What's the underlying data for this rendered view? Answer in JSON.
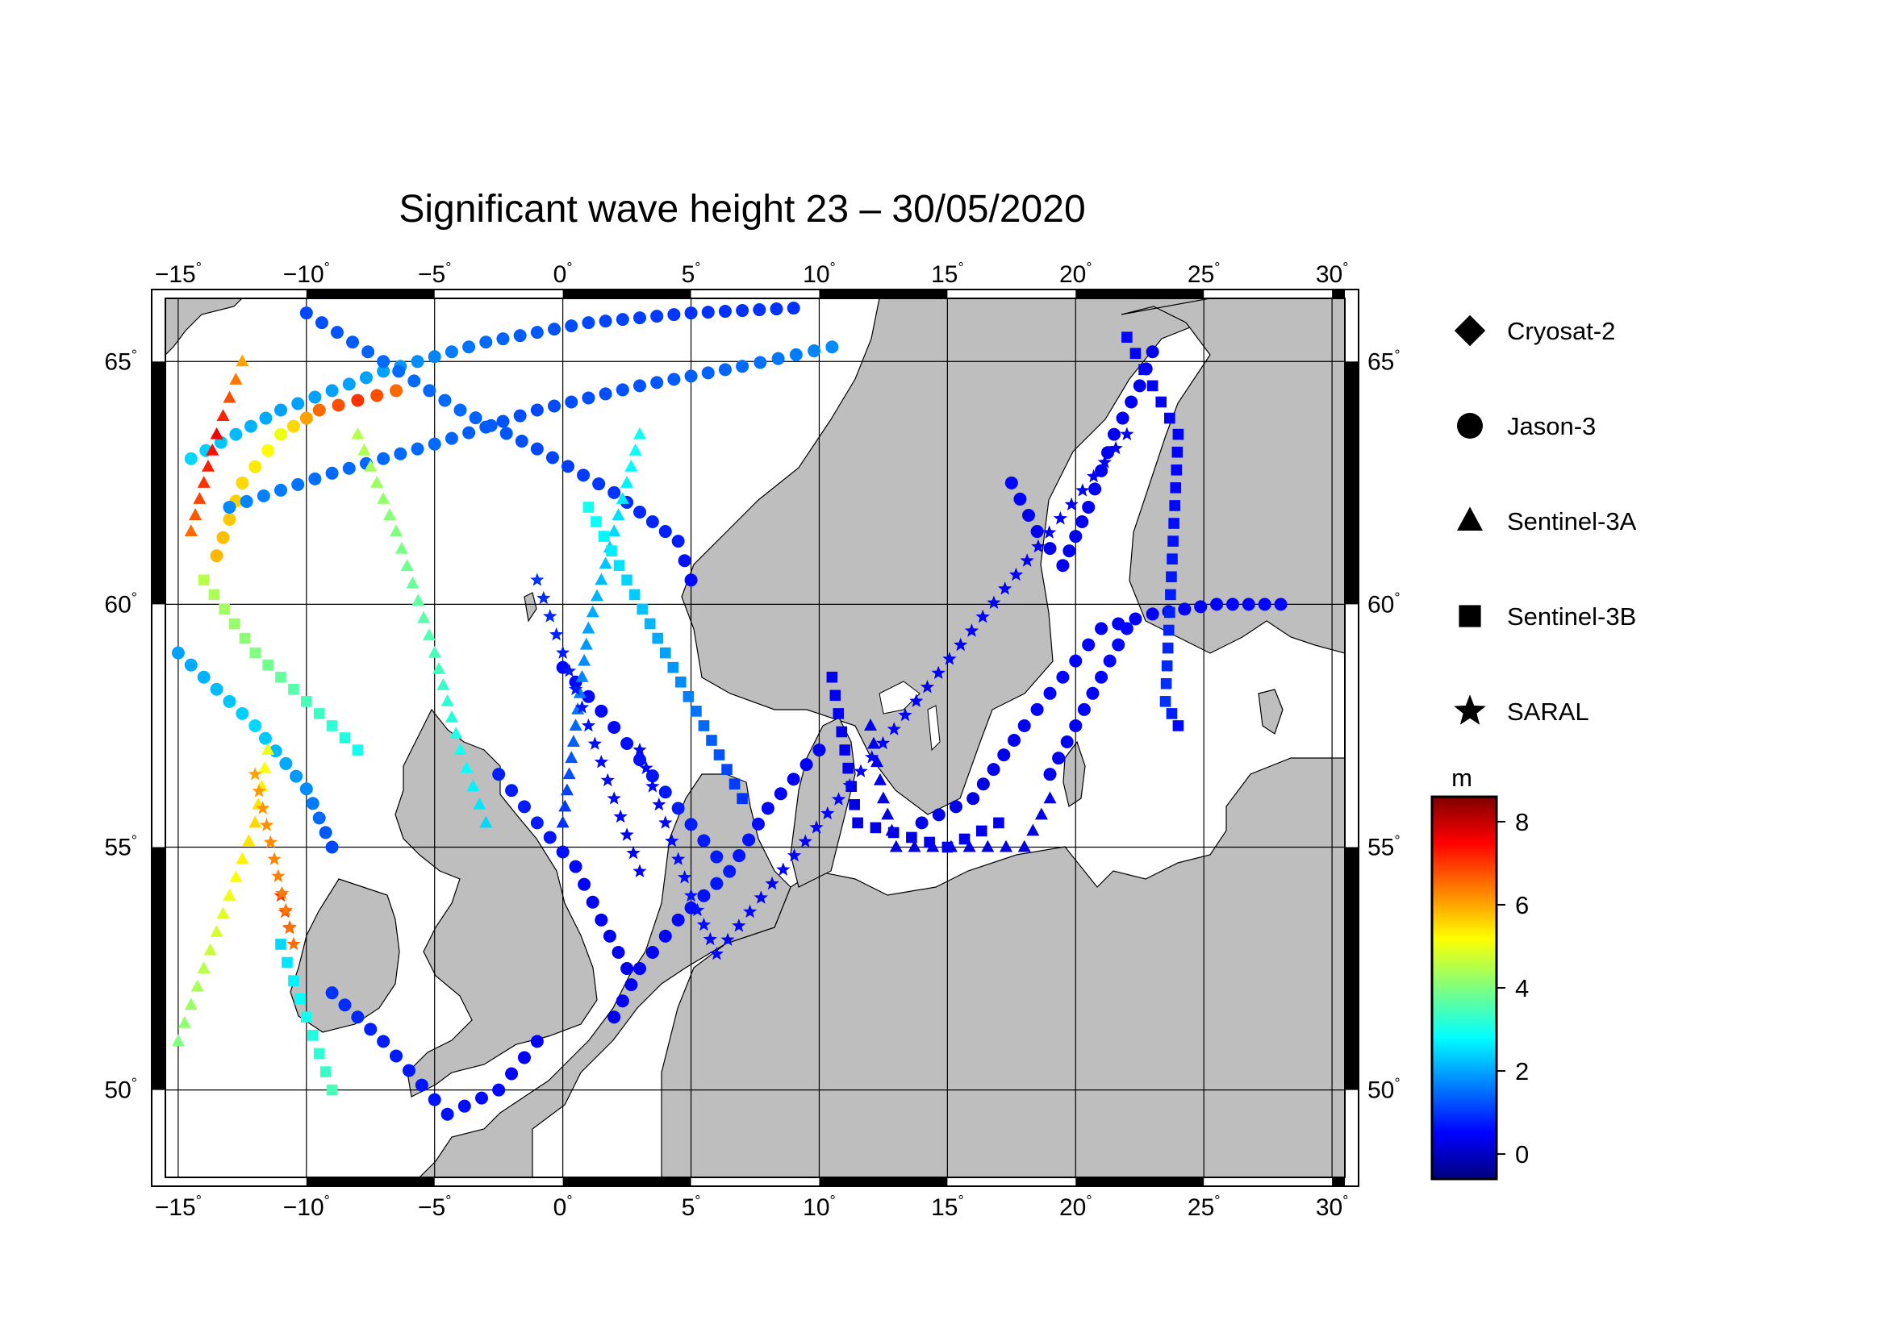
{
  "title": "Significant wave height 23 – 30/05/2020",
  "chart_data": {
    "type": "scatter",
    "title": "Significant wave height 23 – 30/05/2020",
    "lon_range": [
      -15.5,
      30.5
    ],
    "lat_range": [
      48.2,
      66.3
    ],
    "lon_ticks": [
      "−15",
      "−10",
      "−5",
      "0",
      "5",
      "10",
      "15",
      "20",
      "25",
      "30"
    ],
    "lat_ticks": [
      "50",
      "55",
      "60",
      "65"
    ],
    "lon_tick_values": [
      -15,
      -10,
      -5,
      0,
      5,
      10,
      15,
      20,
      25,
      30
    ],
    "lat_tick_values": [
      50,
      55,
      60,
      65
    ],
    "degree_symbol": "°",
    "grid": true,
    "land_color": "#bebebe",
    "sea_color": "#ffffff",
    "legend_position": "right",
    "legend": [
      {
        "name": "Cryosat-2",
        "marker": "diamond"
      },
      {
        "name": "Jason-3",
        "marker": "circle"
      },
      {
        "name": "Sentinel-3A",
        "marker": "triangle"
      },
      {
        "name": "Sentinel-3B",
        "marker": "square"
      },
      {
        "name": "SARAL",
        "marker": "star"
      }
    ],
    "colorbar": {
      "unit": "m",
      "range": [
        -0.6,
        8.6
      ],
      "ticks": [
        "0",
        "2",
        "4",
        "6",
        "8"
      ],
      "tick_values": [
        0,
        2,
        4,
        6,
        8
      ],
      "colormap": "jet"
    },
    "tracks": [
      {
        "satellite": "Jason-3",
        "marker": "circle",
        "points": [
          [
            -13.5,
            61.0,
            5.8
          ],
          [
            -12.5,
            62.5,
            5.5
          ],
          [
            -11.0,
            63.5,
            5.0
          ],
          [
            -9.5,
            64.0,
            6.5
          ],
          [
            -8.0,
            64.2,
            7.0
          ],
          [
            -6.5,
            64.4,
            6.5
          ]
        ]
      },
      {
        "satellite": "Jason-3",
        "marker": "circle",
        "points": [
          [
            -14.5,
            63.0,
            2.5
          ],
          [
            -11.0,
            64.0,
            2.0
          ],
          [
            -7.0,
            64.8,
            2.0
          ],
          [
            -3.0,
            65.4,
            1.5
          ],
          [
            1.0,
            65.8,
            1.2
          ],
          [
            5.0,
            66.0,
            1.0
          ],
          [
            9.0,
            66.1,
            1.0
          ]
        ]
      },
      {
        "satellite": "Jason-3",
        "marker": "circle",
        "points": [
          [
            -13.0,
            62.0,
            1.8
          ],
          [
            -9.0,
            62.7,
            1.5
          ],
          [
            -5.0,
            63.3,
            1.5
          ],
          [
            -1.0,
            64.0,
            1.2
          ],
          [
            3.0,
            64.5,
            1.3
          ],
          [
            7.0,
            64.9,
            1.5
          ],
          [
            10.5,
            65.3,
            1.8
          ]
        ]
      },
      {
        "satellite": "Jason-3",
        "marker": "circle",
        "points": [
          [
            -10.0,
            66.0,
            1.2
          ],
          [
            -7.0,
            65.0,
            1.5
          ],
          [
            -4.0,
            64.0,
            1.5
          ],
          [
            -1.0,
            63.2,
            1.2
          ],
          [
            2.0,
            62.3,
            1.0
          ],
          [
            4.5,
            61.3,
            0.8
          ],
          [
            5.0,
            60.5,
            0.6
          ]
        ]
      },
      {
        "satellite": "Jason-3",
        "marker": "circle",
        "points": [
          [
            -15.0,
            59.0,
            2.0
          ],
          [
            -12.0,
            57.5,
            2.5
          ],
          [
            -10.0,
            56.2,
            1.8
          ],
          [
            -9.0,
            55.0,
            1.2
          ]
        ]
      },
      {
        "satellite": "Jason-3",
        "marker": "circle",
        "points": [
          [
            -2.5,
            56.5,
            0.8
          ],
          [
            -1.0,
            55.5,
            0.8
          ],
          [
            0.5,
            54.6,
            0.6
          ],
          [
            1.5,
            53.5,
            0.5
          ],
          [
            2.5,
            52.5,
            0.4
          ]
        ]
      },
      {
        "satellite": "Jason-3",
        "marker": "circle",
        "points": [
          [
            0.0,
            58.7,
            0.6
          ],
          [
            1.5,
            57.8,
            0.6
          ],
          [
            3.0,
            56.8,
            0.7
          ],
          [
            4.5,
            55.8,
            0.8
          ],
          [
            6.0,
            54.8,
            0.8
          ]
        ]
      },
      {
        "satellite": "Jason-3",
        "marker": "circle",
        "points": [
          [
            -1.0,
            51.0,
            0.5
          ],
          [
            -2.5,
            50.0,
            0.6
          ],
          [
            -4.5,
            49.5,
            0.7
          ],
          [
            -7.0,
            51.0,
            0.8
          ],
          [
            -9.0,
            52.0,
            1.0
          ]
        ]
      },
      {
        "satellite": "Jason-3",
        "marker": "circle",
        "points": [
          [
            2.0,
            51.5,
            0.4
          ],
          [
            3.0,
            52.5,
            0.5
          ],
          [
            4.5,
            53.5,
            0.6
          ],
          [
            6.5,
            54.5,
            0.8
          ],
          [
            8.0,
            55.8,
            0.6
          ],
          [
            10.0,
            57.0,
            0.4
          ]
        ]
      },
      {
        "satellite": "Jason-3",
        "marker": "circle",
        "points": [
          [
            14.0,
            55.5,
            0.4
          ],
          [
            16.0,
            56.0,
            0.3
          ],
          [
            18.0,
            57.5,
            0.5
          ],
          [
            19.5,
            58.5,
            0.6
          ],
          [
            21.0,
            59.5,
            0.5
          ],
          [
            23.0,
            59.8,
            0.5
          ],
          [
            25.5,
            60.0,
            0.5
          ],
          [
            28.0,
            60.0,
            0.6
          ]
        ]
      },
      {
        "satellite": "Jason-3",
        "marker": "circle",
        "points": [
          [
            17.5,
            62.5,
            0.6
          ],
          [
            18.5,
            61.5,
            0.4
          ],
          [
            19.5,
            60.8,
            0.4
          ],
          [
            20.5,
            62.0,
            0.5
          ],
          [
            21.5,
            63.5,
            0.5
          ],
          [
            22.5,
            64.5,
            0.5
          ],
          [
            23.0,
            65.2,
            0.4
          ]
        ]
      },
      {
        "satellite": "Jason-3",
        "marker": "circle",
        "points": [
          [
            19.0,
            56.5,
            0.4
          ],
          [
            20.0,
            57.5,
            0.5
          ],
          [
            21.0,
            58.5,
            0.6
          ],
          [
            22.0,
            59.5,
            0.6
          ]
        ]
      },
      {
        "satellite": "Sentinel-3A",
        "marker": "triangle",
        "points": [
          [
            -15.0,
            51.0,
            4.0
          ],
          [
            -14.0,
            52.5,
            4.5
          ],
          [
            -13.0,
            54.0,
            5.0
          ],
          [
            -12.0,
            55.5,
            5.5
          ],
          [
            -11.5,
            57.0,
            5.0
          ]
        ]
      },
      {
        "satellite": "Sentinel-3A",
        "marker": "triangle",
        "points": [
          [
            -12.5,
            65.0,
            6.0
          ],
          [
            -13.5,
            63.5,
            7.5
          ],
          [
            -14.5,
            61.5,
            6.5
          ]
        ]
      },
      {
        "satellite": "Sentinel-3A",
        "marker": "triangle",
        "points": [
          [
            -8.0,
            63.5,
            4.5
          ],
          [
            -6.5,
            61.5,
            4.0
          ],
          [
            -5.0,
            59.0,
            3.5
          ],
          [
            -4.0,
            57.0,
            3.0
          ],
          [
            -3.0,
            55.5,
            2.5
          ]
        ]
      },
      {
        "satellite": "Sentinel-3A",
        "marker": "triangle",
        "points": [
          [
            3.0,
            63.5,
            3.0
          ],
          [
            2.0,
            61.5,
            2.5
          ],
          [
            1.0,
            59.5,
            2.0
          ],
          [
            0.5,
            57.5,
            1.5
          ],
          [
            0.0,
            55.5,
            1.0
          ]
        ]
      },
      {
        "satellite": "Sentinel-3A",
        "marker": "triangle",
        "points": [
          [
            12.0,
            57.5,
            0.4
          ],
          [
            12.5,
            56.0,
            0.3
          ],
          [
            13.0,
            55.0,
            0.3
          ],
          [
            18.0,
            55.0,
            0.3
          ],
          [
            19.0,
            56.0,
            0.4
          ]
        ]
      },
      {
        "satellite": "Sentinel-3B",
        "marker": "square",
        "points": [
          [
            -14.0,
            60.5,
            4.5
          ],
          [
            -12.0,
            59.0,
            4.0
          ],
          [
            -10.0,
            58.0,
            3.5
          ],
          [
            -8.0,
            57.0,
            3.0
          ]
        ]
      },
      {
        "satellite": "Sentinel-3B",
        "marker": "square",
        "points": [
          [
            -9.0,
            50.0,
            3.5
          ],
          [
            -10.0,
            51.5,
            3.0
          ],
          [
            -11.0,
            53.0,
            2.5
          ]
        ]
      },
      {
        "satellite": "Sentinel-3B",
        "marker": "square",
        "points": [
          [
            1.0,
            62.0,
            3.0
          ],
          [
            2.5,
            60.5,
            2.5
          ],
          [
            4.0,
            59.0,
            2.0
          ],
          [
            5.5,
            57.5,
            1.5
          ],
          [
            7.0,
            56.0,
            1.0
          ]
        ]
      },
      {
        "satellite": "Sentinel-3B",
        "marker": "square",
        "points": [
          [
            10.5,
            58.5,
            0.5
          ],
          [
            11.0,
            57.0,
            0.4
          ],
          [
            11.5,
            55.5,
            0.3
          ],
          [
            15.0,
            55.0,
            0.4
          ],
          [
            17.0,
            55.5,
            0.4
          ]
        ]
      },
      {
        "satellite": "Sentinel-3B",
        "marker": "square",
        "points": [
          [
            22.0,
            65.5,
            0.6
          ],
          [
            23.0,
            64.5,
            0.5
          ],
          [
            24.0,
            63.5,
            0.5
          ],
          [
            23.5,
            58.0,
            1.0
          ],
          [
            24.0,
            57.5,
            0.6
          ]
        ]
      },
      {
        "satellite": "SARAL",
        "marker": "star",
        "points": [
          [
            -11.0,
            54.0,
            7.0
          ],
          [
            -10.5,
            53.0,
            6.5
          ],
          [
            -12.0,
            56.5,
            6.0
          ]
        ]
      },
      {
        "satellite": "SARAL",
        "marker": "star",
        "points": [
          [
            -1.0,
            60.5,
            1.0
          ],
          [
            0.0,
            59.0,
            0.8
          ],
          [
            1.0,
            57.5,
            0.7
          ],
          [
            2.0,
            56.0,
            0.6
          ],
          [
            3.0,
            54.5,
            0.5
          ]
        ]
      },
      {
        "satellite": "SARAL",
        "marker": "star",
        "points": [
          [
            3.0,
            57.0,
            0.6
          ],
          [
            4.0,
            55.5,
            0.6
          ],
          [
            5.0,
            54.0,
            0.7
          ],
          [
            6.0,
            52.8,
            0.6
          ],
          [
            22.0,
            63.5,
            0.5
          ]
        ]
      }
    ]
  }
}
